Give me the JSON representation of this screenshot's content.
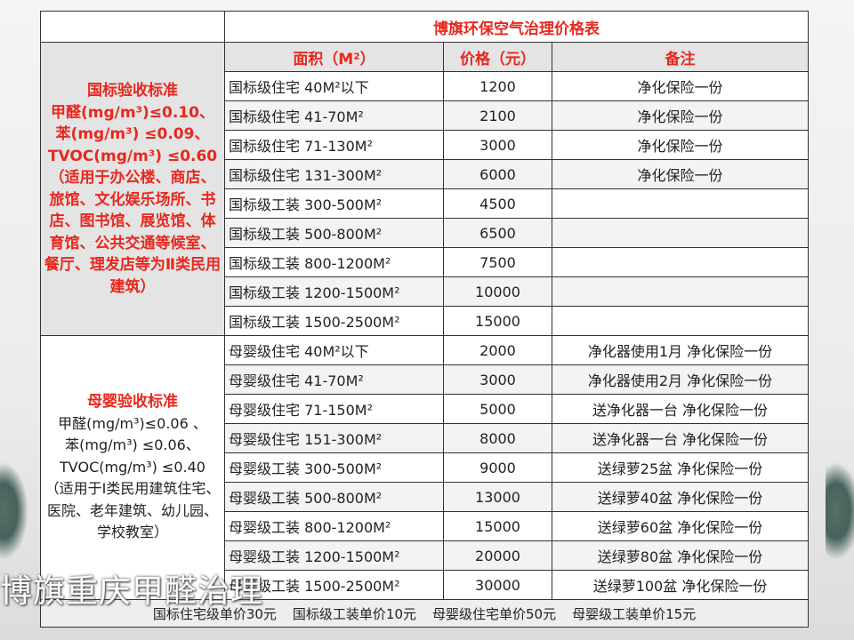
{
  "title": "博旗环保空气治理价格表",
  "headers": {
    "area": "面积（M²）",
    "price": "价格（元）",
    "note": "备注"
  },
  "national": {
    "heading": "国标验收标准",
    "lines": [
      "甲醛(mg/m³)≤0.10、",
      "苯(mg/m³) ≤0.09、",
      "TVOC(mg/m³) ≤0.60",
      "（适用于办公楼、商店、旅馆、文化娱乐场所、书店、图书馆、展览馆、体育馆、公共交通等候室、餐厅、理发店等为Ⅱ类民用建筑）"
    ],
    "rows": [
      {
        "area": "国标级住宅  40M²以下",
        "price": "1200",
        "note": "净化保险一份"
      },
      {
        "area": "国标级住宅  41-70M²",
        "price": "2100",
        "note": "净化保险一份"
      },
      {
        "area": "国标级住宅  71-130M²",
        "price": "3000",
        "note": "净化保险一份"
      },
      {
        "area": "国标级住宅  131-300M²",
        "price": "6000",
        "note": "净化保险一份"
      },
      {
        "area": "国标级工装  300-500M²",
        "price": "4500",
        "note": ""
      },
      {
        "area": "国标级工装  500-800M²",
        "price": "6500",
        "note": ""
      },
      {
        "area": "国标级工装  800-1200M²",
        "price": "7500",
        "note": ""
      },
      {
        "area": "国标级工装  1200-1500M²",
        "price": "10000",
        "note": ""
      },
      {
        "area": "国标级工装  1500-2500M²",
        "price": "15000",
        "note": ""
      }
    ]
  },
  "maternal": {
    "heading": "母婴验收标准",
    "lines": [
      "甲醛(mg/m³)≤0.06 、",
      "苯(mg/m³) ≤0.06、",
      "TVOC(mg/m³) ≤0.40",
      "（适用于Ⅰ类民用建筑住宅、医院、老年建筑、幼儿园、学校教室）"
    ],
    "rows": [
      {
        "area": "母婴级住宅  40M²以下",
        "price": "2000",
        "note": "净化器使用1月  净化保险一份"
      },
      {
        "area": "母婴级住宅  41-70M²",
        "price": "3000",
        "note": "净化器使用2月  净化保险一份"
      },
      {
        "area": "母婴级住宅  71-150M²",
        "price": "5000",
        "note": "送净化器一台  净化保险一份"
      },
      {
        "area": "母婴级住宅  151-300M²",
        "price": "8000",
        "note": "送净化器一台  净化保险一份"
      },
      {
        "area": "母婴级工装  300-500M²",
        "price": "9000",
        "note": "送绿萝25盆  净化保险一份"
      },
      {
        "area": "母婴级工装  500-800M²",
        "price": "13000",
        "note": "送绿萝40盆  净化保险一份"
      },
      {
        "area": "母婴级工装  800-1200M²",
        "price": "15000",
        "note": "送绿萝60盆  净化保险一份"
      },
      {
        "area": "母婴级工装  1200-1500M²",
        "price": "20000",
        "note": "送绿萝80盆  净化保险一份"
      },
      {
        "area": "母婴级工装  1500-2500M²",
        "price": "30000",
        "note": "送绿萝100盆  净化保险一份"
      }
    ]
  },
  "footer": [
    "国标住宅级单价30元",
    "国标级工装单价10元",
    "母婴级住宅单价50元",
    "母婴级工装单价15元"
  ],
  "watermark": "博旗重庆甲醛治理"
}
